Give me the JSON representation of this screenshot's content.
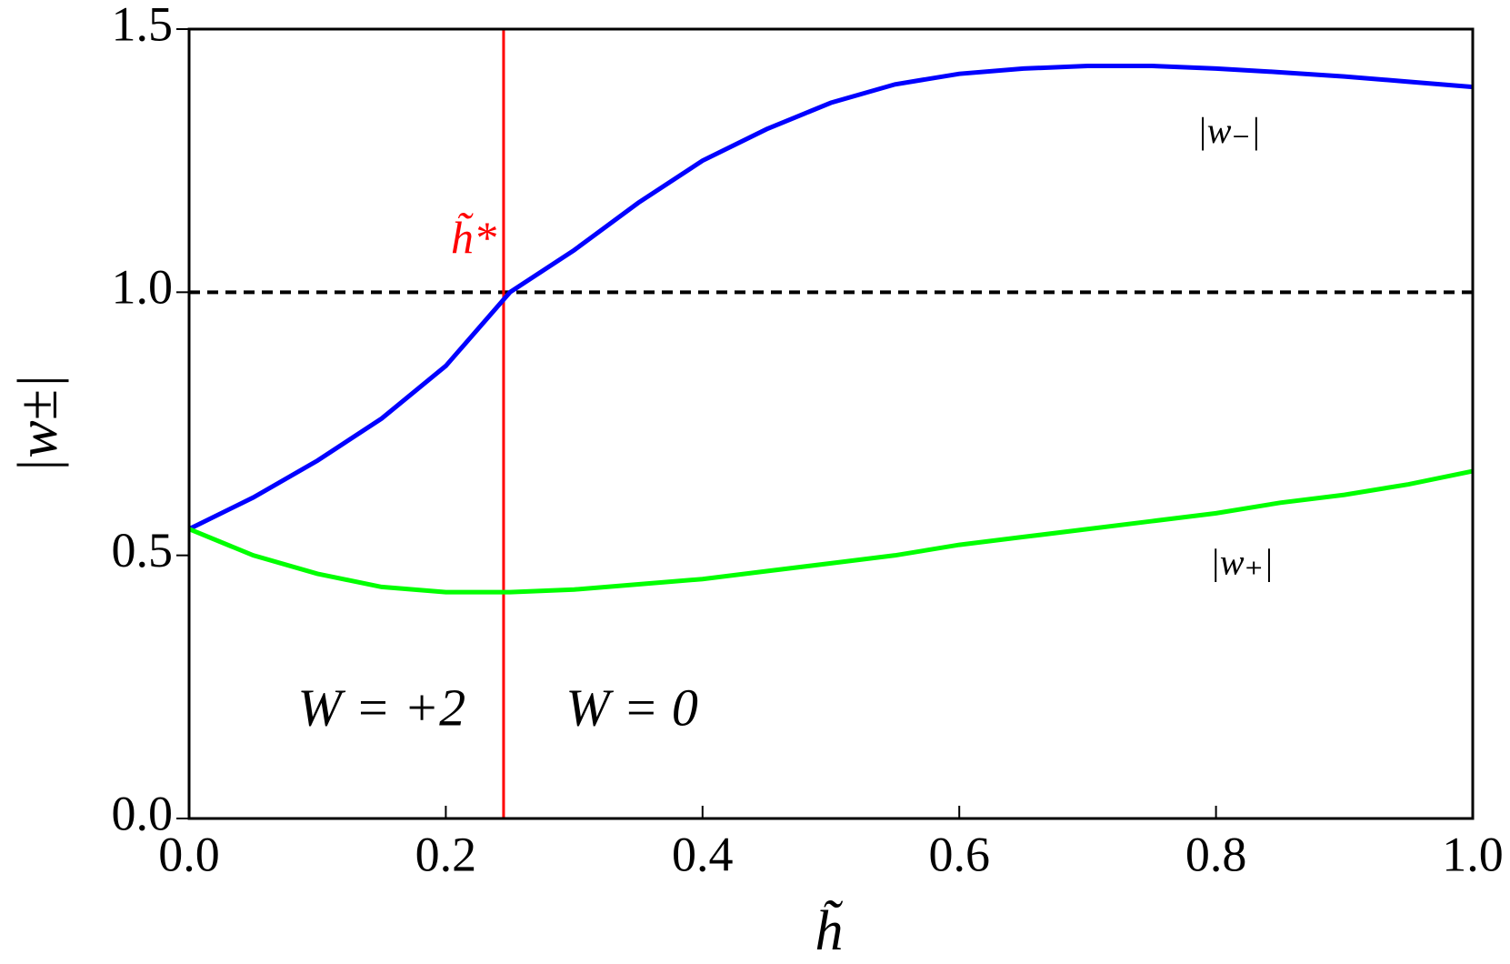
{
  "chart_data": {
    "type": "line",
    "xlabel": "h̃",
    "ylabel": "|w±|",
    "x": [
      0,
      0.05,
      0.1,
      0.15,
      0.2,
      0.25,
      0.3,
      0.35,
      0.4,
      0.45,
      0.5,
      0.55,
      0.6,
      0.65,
      0.7,
      0.75,
      0.8,
      0.85,
      0.9,
      0.95,
      1.0
    ],
    "series": [
      {
        "name": "|w₋|",
        "color": "#0000ff",
        "values": [
          0.55,
          0.61,
          0.68,
          0.76,
          0.86,
          1.0,
          1.08,
          1.17,
          1.25,
          1.31,
          1.36,
          1.395,
          1.415,
          1.425,
          1.43,
          1.43,
          1.425,
          1.418,
          1.41,
          1.4,
          1.39
        ]
      },
      {
        "name": "|w₊|",
        "color": "#00ff00",
        "values": [
          0.55,
          0.5,
          0.465,
          0.44,
          0.43,
          0.43,
          0.435,
          0.445,
          0.455,
          0.47,
          0.485,
          0.5,
          0.52,
          0.535,
          0.55,
          0.565,
          0.58,
          0.6,
          0.615,
          0.635,
          0.66
        ]
      }
    ],
    "xlim": [
      0,
      1.0
    ],
    "ylim": [
      0,
      1.5
    ],
    "xticks": [
      {
        "value": 0,
        "label": "0.0"
      },
      0.2,
      0.4,
      0.6,
      0.8,
      {
        "value": 1.0,
        "label": "1.0"
      }
    ],
    "yticks": [
      {
        "value": 0,
        "label": "0.0"
      },
      0.5,
      {
        "value": 1.0,
        "label": "1.0"
      },
      {
        "value": 1.5,
        "label": "1.5"
      }
    ],
    "hline": {
      "y": 1.0,
      "color": "#000000",
      "style": "dashed"
    },
    "vline": {
      "x": 0.245,
      "color": "#ff0000",
      "label": "h̃*"
    },
    "annotations": [
      "W = +2",
      "W = 0"
    ]
  }
}
